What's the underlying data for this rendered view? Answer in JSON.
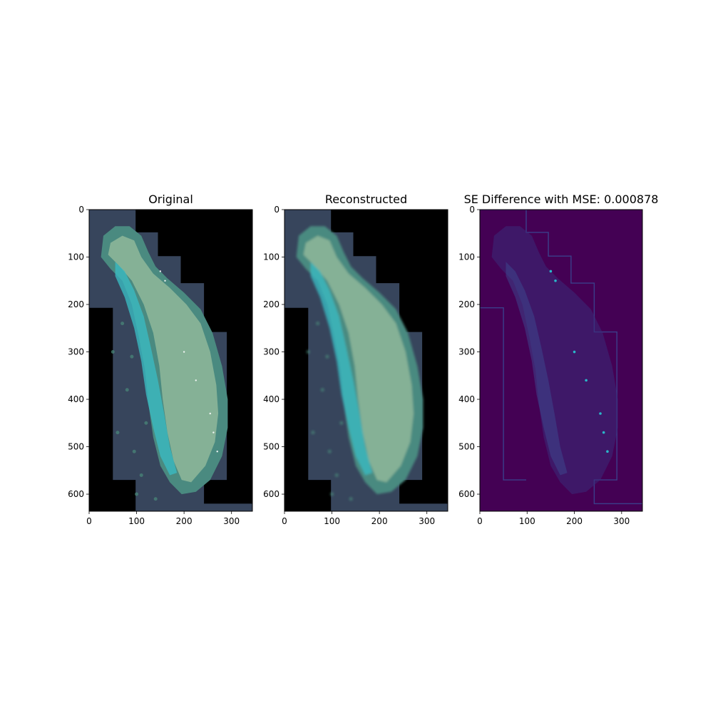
{
  "chart_data": [
    {
      "type": "image",
      "title": "Original",
      "xlim": [
        0,
        344
      ],
      "ylim": [
        0,
        636
      ],
      "y_axis_inverted": true,
      "xticks": [
        "0",
        "100",
        "200",
        "300"
      ],
      "yticks": [
        "0",
        "100",
        "200",
        "300",
        "400",
        "500",
        "600"
      ],
      "colors": {
        "background": "#000000",
        "tile": "#37455c",
        "reef": "#4a8a80",
        "lagoon": "#8fb79a",
        "shallow": "#39b9c0",
        "deep": "#2a4766"
      }
    },
    {
      "type": "image",
      "title": "Reconstructed",
      "xlim": [
        0,
        344
      ],
      "ylim": [
        0,
        636
      ],
      "y_axis_inverted": true,
      "xticks": [
        "0",
        "100",
        "200",
        "300"
      ],
      "yticks": [
        "0",
        "100",
        "200",
        "300",
        "400",
        "500",
        "600"
      ],
      "colors": {
        "background": "#000000",
        "tile": "#37455c",
        "reef": "#4a8a80",
        "lagoon": "#8fb79a",
        "shallow": "#39b9c0",
        "deep": "#2a4766"
      }
    },
    {
      "type": "heatmap",
      "title": "SE Difference with MSE: 0.000878",
      "xlim": [
        0,
        344
      ],
      "ylim": [
        0,
        636
      ],
      "y_axis_inverted": true,
      "xticks": [
        "0",
        "100",
        "200",
        "300"
      ],
      "yticks": [
        "0",
        "100",
        "200",
        "300",
        "400",
        "500",
        "600"
      ],
      "colormap": "viridis",
      "colors": {
        "low": "#440154",
        "edge": "#3b3f8a",
        "high": "#2ab7c9"
      }
    }
  ]
}
